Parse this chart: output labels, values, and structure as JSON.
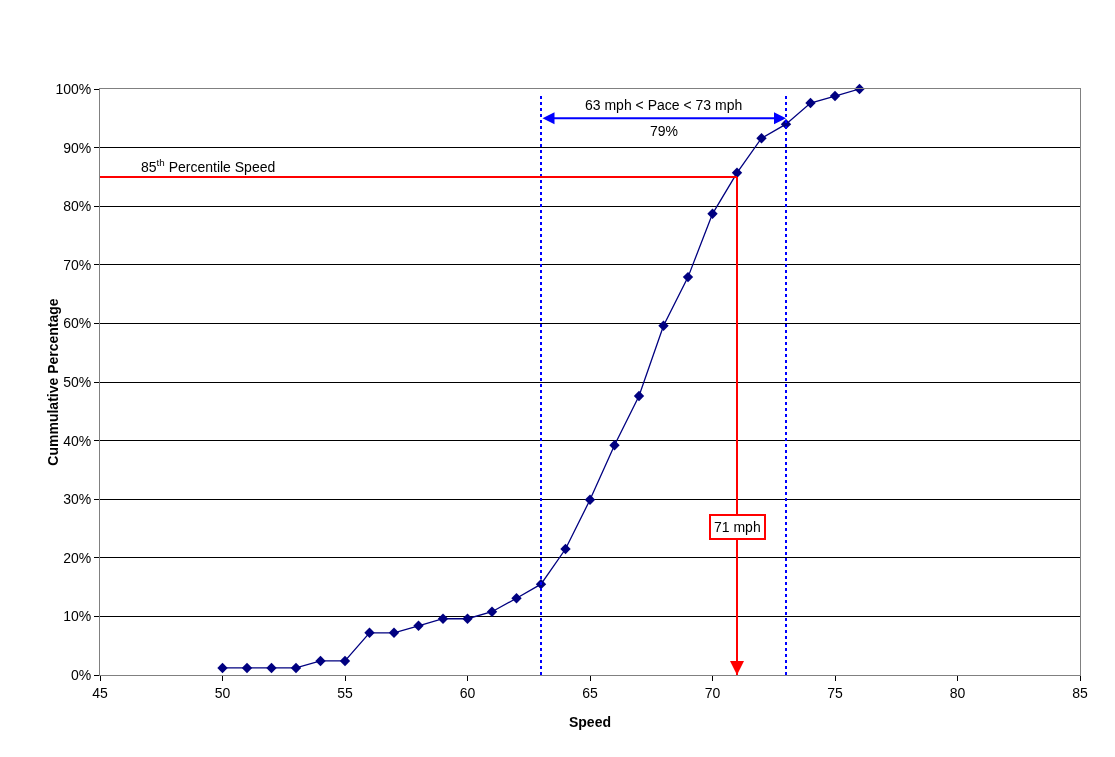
{
  "chart_data": {
    "type": "line",
    "xlabel": "Speed",
    "ylabel": "Cummulative Percentage",
    "x": [
      50,
      51,
      52,
      53,
      54,
      55,
      56,
      57,
      58,
      59,
      60,
      61,
      62,
      63,
      64,
      65,
      66,
      67,
      68,
      69,
      70,
      71,
      72,
      73,
      74,
      75,
      76
    ],
    "series": [
      {
        "color": "#000080",
        "values": [
          1.2,
          1.2,
          1.2,
          1.2,
          2.4,
          2.4,
          7.2,
          7.2,
          8.4,
          9.6,
          9.6,
          10.8,
          13.1,
          15.5,
          21.5,
          29.9,
          39.2,
          47.6,
          59.6,
          67.9,
          78.7,
          85.7,
          91.6,
          94.0,
          97.6,
          98.8,
          100
        ]
      }
    ],
    "xlim": [
      45,
      85
    ],
    "xticks": [
      45,
      50,
      55,
      60,
      65,
      70,
      75,
      80,
      85
    ],
    "ylim": [
      0,
      100
    ],
    "yticks": [
      {
        "value": 0,
        "label": "0%"
      },
      {
        "value": 10,
        "label": "10%"
      },
      {
        "value": 20,
        "label": "20%"
      },
      {
        "value": 30,
        "label": "30%"
      },
      {
        "value": 40,
        "label": "40%"
      },
      {
        "value": 50,
        "label": "50%"
      },
      {
        "value": 60,
        "label": "60%"
      },
      {
        "value": 70,
        "label": "70%"
      },
      {
        "value": 80,
        "label": "80%"
      },
      {
        "value": 90,
        "label": "90%"
      },
      {
        "value": 100,
        "label": "100%"
      }
    ],
    "grid": "y",
    "marker": "diamond",
    "line_style": "solid",
    "ref_lines": [
      {
        "axis": "x",
        "value": 63,
        "color": "#0000ff",
        "line_style": "dotted"
      },
      {
        "axis": "x",
        "value": 73,
        "color": "#0000ff",
        "line_style": "dotted"
      },
      {
        "axis": "y",
        "value": 85,
        "label": "85$^{th}$ Percentile Speed",
        "color": "#ff0000",
        "line_style": "solid"
      },
      {
        "axis": "x",
        "value": 71,
        "label": "71 mph",
        "color": "#ff0000",
        "line_style": "solid"
      }
    ],
    "annotations": [
      "63 mph < Pace < 73 mph",
      "79%"
    ]
  }
}
